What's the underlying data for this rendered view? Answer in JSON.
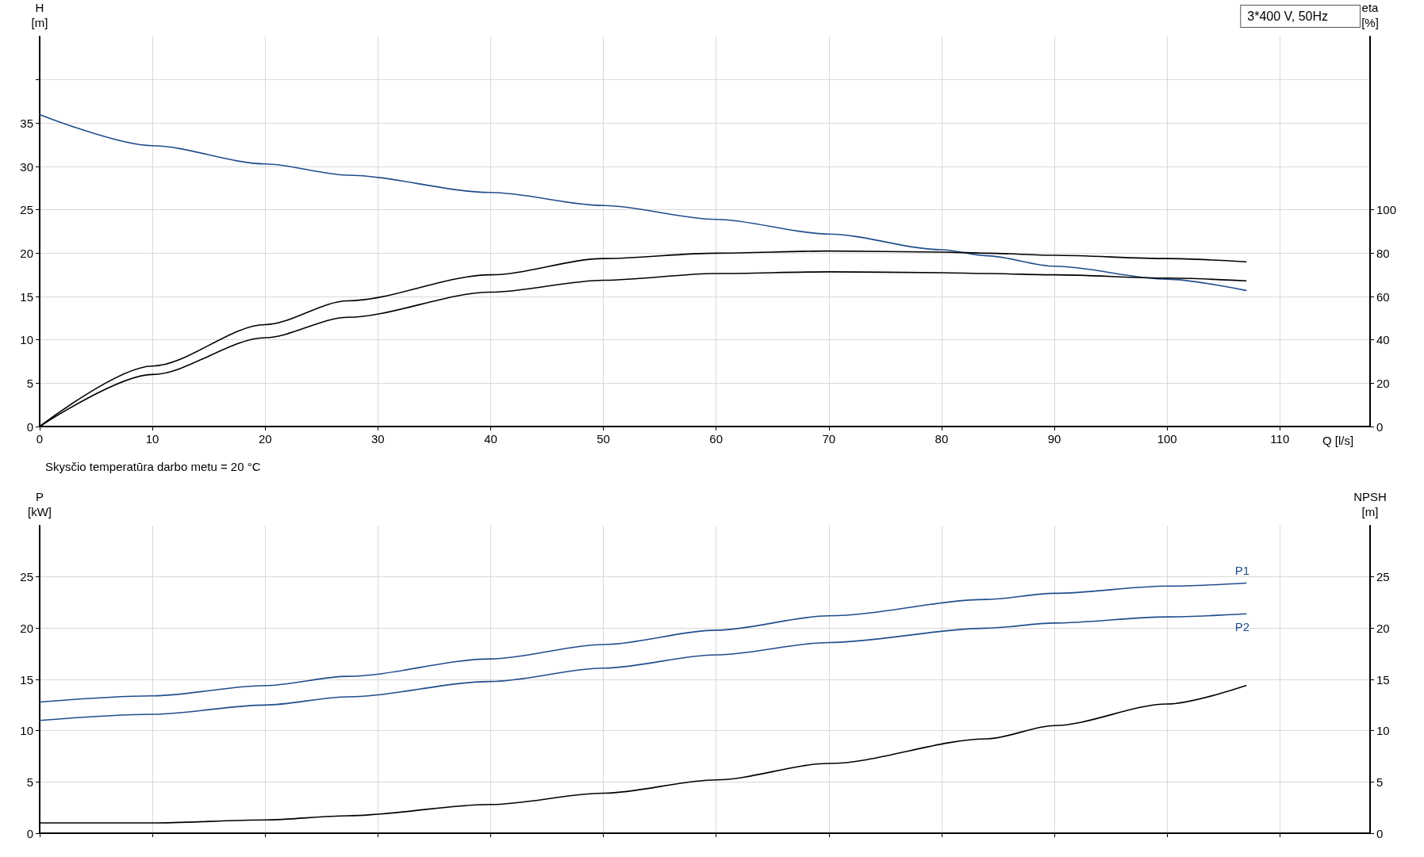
{
  "chart_data": [
    {
      "type": "line",
      "xlabel": "Q [l/s]",
      "ylabel": "H\n[m]",
      "y2label": "eta\n[%]",
      "annotations": [
        "3*400 V, 50Hz"
      ],
      "xlim": [
        0,
        118
      ],
      "xticks": [
        0,
        10,
        20,
        30,
        40,
        50,
        60,
        70,
        80,
        90,
        100,
        110
      ],
      "ylim": [
        0,
        45
      ],
      "yticks": [
        0,
        5,
        10,
        15,
        20,
        25,
        30,
        35,
        {
          "value": 40,
          "label": null
        }
      ],
      "y2lim": [
        0,
        180
      ],
      "y2ticks": [
        0,
        20,
        40,
        60,
        80,
        100
      ],
      "grid": true,
      "legend": false,
      "marker": "none",
      "line_style": "solid",
      "x": [
        0,
        10,
        20,
        27.3,
        40,
        50,
        60,
        70,
        80,
        84,
        90,
        100,
        107
      ],
      "series": [
        {
          "color": "#1f4e8c",
          "values": [
            36,
            32.4,
            30.3,
            29,
            27,
            25.5,
            23.9,
            22.2,
            20.4,
            19.7,
            18.5,
            17,
            15.7
          ]
        },
        {
          "color": "#000000",
          "axis": "y2",
          "values": [
            0,
            27.9,
            47,
            58,
            70,
            77.5,
            80,
            81,
            80.5,
            80,
            79,
            77.5,
            76
          ]
        },
        {
          "color": "#000000",
          "axis": "y2",
          "values": [
            0,
            24,
            41,
            50.4,
            62,
            67.5,
            70.6,
            71.4,
            71,
            70.6,
            70,
            68.5,
            67.2
          ]
        }
      ]
    },
    {
      "type": "line",
      "subtitle": "Skysčio temperatūra darbo metu = 20 °C",
      "ylabel": "P\n[kW]",
      "y2label": "NPSH\n[m]",
      "xlim": [
        0,
        118
      ],
      "xticks": [
        0,
        10,
        20,
        30,
        40,
        50,
        60,
        70,
        80,
        90,
        100,
        110
      ],
      "ylim": [
        0,
        30
      ],
      "yticks": [
        0,
        5,
        10,
        15,
        20,
        25
      ],
      "y2lim": [
        0,
        30
      ],
      "y2ticks": [
        0,
        5,
        10,
        15,
        20,
        25
      ],
      "grid": true,
      "legend": false,
      "marker": "none",
      "line_style": "solid",
      "tick_labels": "y",
      "x": [
        0,
        10,
        20,
        27.3,
        40,
        50,
        60,
        70,
        84,
        90,
        100,
        107
      ],
      "series": [
        {
          "name": "P1",
          "color": "#1f4e8c",
          "values": [
            12.8,
            13.4,
            14.4,
            15.3,
            17,
            18.4,
            19.8,
            21.2,
            22.8,
            23.4,
            24.1,
            24.4
          ]
        },
        {
          "name": "P2",
          "color": "#1f4e8c",
          "values": [
            11,
            11.6,
            12.5,
            13.3,
            14.8,
            16.1,
            17.4,
            18.6,
            20,
            20.5,
            21.1,
            21.4
          ]
        },
        {
          "color": "#000000",
          "axis": "y2",
          "values": [
            1,
            1,
            1.3,
            1.7,
            2.8,
            3.9,
            5.2,
            6.8,
            9.2,
            10.5,
            12.6,
            14.4
          ]
        }
      ]
    }
  ]
}
